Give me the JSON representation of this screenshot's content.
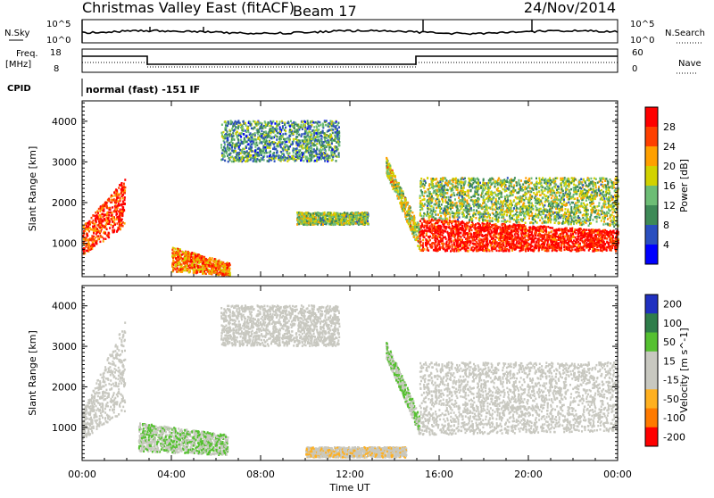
{
  "header": {
    "station": "Christmas Valley East (fitACF)",
    "beam": "Beam 17",
    "date": "24/Nov/2014"
  },
  "top_panels": {
    "nsky": {
      "left_label": "N.Sky",
      "left_ticks": [
        "10^5",
        "10^0"
      ],
      "right_label": "N.Search",
      "right_ticks": [
        "10^5",
        "10^0"
      ]
    },
    "freq": {
      "left_label_1": "Freq.",
      "left_label_2": "[MHz]",
      "left_ticks": [
        "18",
        "8"
      ],
      "right_label": "Nave",
      "right_ticks": [
        "60",
        "0"
      ]
    },
    "cpid": {
      "label": "CPID",
      "text": "normal (fast) -151 IF"
    }
  },
  "chart_data": [
    {
      "type": "heatmap",
      "title": "",
      "xlabel": "Time UT",
      "ylabel": "Slant Range [km]",
      "x_ticks": [
        "00:00",
        "04:00",
        "08:00",
        "12:00",
        "16:00",
        "20:00",
        "00:00"
      ],
      "xlim_hours": [
        0,
        24
      ],
      "y_ticks": [
        1000,
        2000,
        3000,
        4000
      ],
      "ylim": [
        180,
        4500
      ],
      "colorbar_label": "Power [dB]",
      "colorbar_ticks": [
        4,
        8,
        12,
        16,
        20,
        24,
        28
      ],
      "colorbar_range": [
        0,
        30
      ],
      "colormap": [
        "#0000ff",
        "#2a4fbf",
        "#3e8a57",
        "#6dbd75",
        "#d2d200",
        "#ffa000",
        "#ff4000",
        "#ff0000"
      ],
      "regions": [
        {
          "t0": 0.0,
          "t1": 1.9,
          "r0": 700,
          "r1": 1400,
          "r_end0": 1400,
          "r_end1": 2600,
          "value": 26
        },
        {
          "t0": 4.0,
          "t1": 6.6,
          "r0": 300,
          "r1": 900,
          "r_end0": 200,
          "r_end1": 500,
          "value": 22
        },
        {
          "t0": 6.2,
          "t1": 11.5,
          "r0": 3000,
          "r1": 4000,
          "r_end0": 3000,
          "r_end1": 4000,
          "value": 10
        },
        {
          "t0": 9.6,
          "t1": 12.8,
          "r0": 1450,
          "r1": 1750,
          "r_end0": 1450,
          "r_end1": 1750,
          "value": 14
        },
        {
          "t0": 13.6,
          "t1": 15.1,
          "r0": 2700,
          "r1": 3100,
          "r_end0": 800,
          "r_end1": 1400,
          "value": 16
        },
        {
          "t0": 15.1,
          "t1": 24.0,
          "r0": 800,
          "r1": 1600,
          "r_end0": 800,
          "r_end1": 1300,
          "value": 28
        },
        {
          "t0": 15.1,
          "t1": 24.0,
          "r0": 1600,
          "r1": 2600,
          "r_end0": 1400,
          "r_end1": 2600,
          "value": 14
        }
      ]
    },
    {
      "type": "heatmap",
      "title": "",
      "xlabel": "Time UT",
      "ylabel": "Slant Range [km]",
      "x_ticks": [
        "00:00",
        "04:00",
        "08:00",
        "12:00",
        "16:00",
        "20:00",
        "00:00"
      ],
      "xlim_hours": [
        0,
        24
      ],
      "y_ticks": [
        1000,
        2000,
        3000,
        4000
      ],
      "ylim": [
        180,
        4500
      ],
      "colorbar_label": "Velocity [m s^-1]",
      "colorbar_ticks": [
        200,
        100,
        50,
        15,
        -15,
        -50,
        -100,
        -200
      ],
      "colorbar_range": [
        -250,
        250
      ],
      "colormap": [
        "#2030c0",
        "#2f7d4a",
        "#55c030",
        "#c8c8c0",
        "#c8c8c0",
        "#ffb020",
        "#ff7a00",
        "#ff0000"
      ],
      "regions": [
        {
          "t0": 0.0,
          "t1": 1.9,
          "r0": 700,
          "r1": 1400,
          "r_end0": 1400,
          "r_end1": 3600,
          "value": 0
        },
        {
          "t0": 2.5,
          "t1": 6.5,
          "r0": 400,
          "r1": 1100,
          "r_end0": 300,
          "r_end1": 800,
          "value": 60
        },
        {
          "t0": 6.2,
          "t1": 11.5,
          "r0": 3000,
          "r1": 4000,
          "r_end0": 3000,
          "r_end1": 4000,
          "value": -20
        },
        {
          "t0": 10.0,
          "t1": 14.5,
          "r0": 250,
          "r1": 500,
          "r_end0": 250,
          "r_end1": 500,
          "value": -40
        },
        {
          "t0": 13.6,
          "t1": 15.1,
          "r0": 2700,
          "r1": 3100,
          "r_end0": 800,
          "r_end1": 1300,
          "value": 60
        },
        {
          "t0": 15.1,
          "t1": 24.0,
          "r0": 800,
          "r1": 2600,
          "r_end0": 900,
          "r_end1": 2600,
          "value": 0
        }
      ]
    }
  ]
}
